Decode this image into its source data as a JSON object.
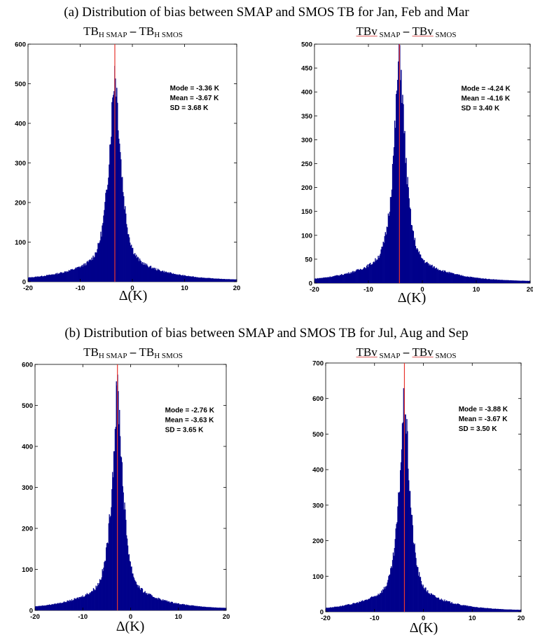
{
  "sections": [
    {
      "heading": "(a)  Distribution of bias between SMAP and SMOS TB for Jan, Feb and Mar"
    },
    {
      "heading": "(b)  Distribution of bias between SMAP and SMOS TB for Jul, Aug and Sep"
    }
  ],
  "panel_titles": [
    {
      "tb1": "TB",
      "sub1": "H SMAP",
      "dash": " – ",
      "tb2": "TB",
      "sub2": "H SMOS"
    },
    {
      "tb1": "TBv",
      "sub1": " SMAP",
      "dash": " – ",
      "tb2": "TBv",
      "sub2": " SMOS"
    },
    {
      "tb1": "TB",
      "sub1": "H SMAP",
      "dash": " – ",
      "tb2": "TB",
      "sub2": "H SMOS"
    },
    {
      "tb1": "TBv",
      "sub1": " SMAP",
      "dash": " – ",
      "tb2": "TBv",
      "sub2": " SMOS"
    }
  ],
  "xlabel": "Δ(K)",
  "colors": {
    "bars": "#00008b",
    "reference_line": "#e8352e",
    "axes": "#000000"
  },
  "chart_data": [
    {
      "type": "bar",
      "subtype": "histogram",
      "panel": "a-H",
      "xlim": [
        -20,
        20
      ],
      "ylim": [
        0,
        600
      ],
      "xticks": [
        -20,
        -10,
        0,
        10,
        20
      ],
      "yticks": [
        0,
        100,
        200,
        300,
        400,
        500,
        600
      ],
      "mode": -3.36,
      "mean": -3.67,
      "sd": 3.68,
      "peak": 540,
      "vline_x": -3.36,
      "annotations": [
        "Mode = -3.36 K",
        "Mean = -3.67 K",
        "SD = 3.68 K"
      ]
    },
    {
      "type": "bar",
      "subtype": "histogram",
      "panel": "a-V",
      "xlim": [
        -20,
        20
      ],
      "ylim": [
        0,
        500
      ],
      "xticks": [
        -20,
        -10,
        0,
        10,
        20
      ],
      "yticks": [
        0,
        50,
        100,
        150,
        200,
        250,
        300,
        350,
        400,
        450,
        500
      ],
      "mode": -4.24,
      "mean": -4.16,
      "sd": 3.4,
      "peak": 490,
      "vline_x": -4.24,
      "annotations": [
        "Mode = -4.24 K",
        "Mean = -4.16 K",
        "SD = 3.40 K"
      ]
    },
    {
      "type": "bar",
      "subtype": "histogram",
      "panel": "b-H",
      "xlim": [
        -20,
        20
      ],
      "ylim": [
        0,
        600
      ],
      "xticks": [
        -20,
        -10,
        0,
        10,
        20
      ],
      "yticks": [
        0,
        100,
        200,
        300,
        400,
        500,
        600
      ],
      "mode": -2.76,
      "mean": -3.63,
      "sd": 3.65,
      "peak": 545,
      "vline_x": -2.76,
      "annotations": [
        "Mode = -2.76 K",
        "Mean = -3.63 K",
        "SD = 3.65 K"
      ]
    },
    {
      "type": "bar",
      "subtype": "histogram",
      "panel": "b-V",
      "xlim": [
        -20,
        20
      ],
      "ylim": [
        0,
        700
      ],
      "xticks": [
        -20,
        -10,
        0,
        10,
        20
      ],
      "yticks": [
        0,
        100,
        200,
        300,
        400,
        500,
        600,
        700
      ],
      "mode": -3.88,
      "mean": -3.67,
      "sd": 3.5,
      "peak": 605,
      "vline_x": -3.88,
      "annotations": [
        "Mode = -3.88 K",
        "Mean = -3.67 K",
        "SD = 3.50 K"
      ]
    }
  ]
}
